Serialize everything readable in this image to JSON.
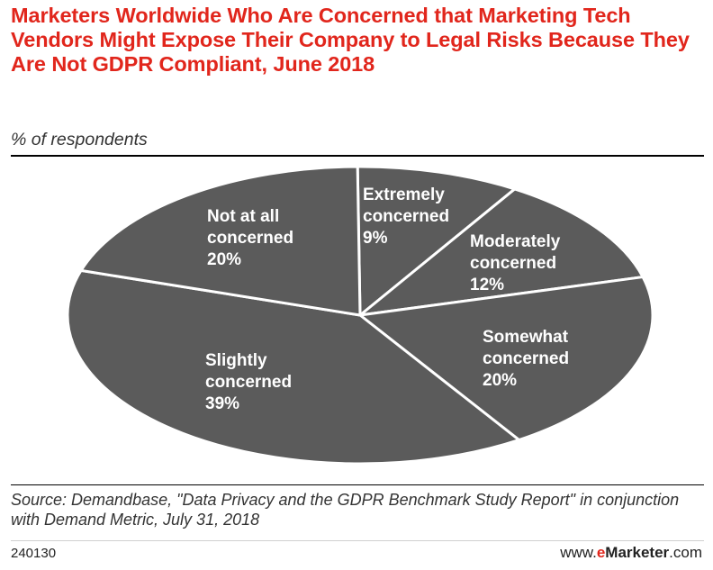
{
  "title": "Marketers Worldwide Who Are Concerned that Marketing Tech Vendors Might Expose Their Company to Legal Risks Because They Are Not GDPR Compliant, June 2018",
  "subtitle": "% of respondents",
  "source": "Source: Demandbase, \"Data Privacy and the GDPR Benchmark Study Report\" in conjunction with Demand Metric, July 31, 2018",
  "chart_id": "240130",
  "brand": {
    "prefix": "www.",
    "e": "e",
    "name": "Marketer",
    "suffix": ".com"
  },
  "colors": {
    "title": "#e1261c",
    "slice": "#5b5b5b",
    "separator": "#ffffff",
    "label": "#ffffff"
  },
  "chart_data": {
    "type": "pie",
    "title": "Marketers Worldwide Who Are Concerned that Marketing Tech Vendors Might Expose Their Company to Legal Risks Because They Are Not GDPR Compliant, June 2018",
    "subtitle": "% of respondents",
    "unit": "%",
    "slices": [
      {
        "lines": [
          "Extremely",
          "concerned"
        ],
        "value": 9,
        "display": "9%"
      },
      {
        "lines": [
          "Moderately",
          "concerned"
        ],
        "value": 12,
        "display": "12%"
      },
      {
        "lines": [
          "Somewhat",
          "concerned"
        ],
        "value": 20,
        "display": "20%"
      },
      {
        "lines": [
          "Slightly",
          "concerned"
        ],
        "value": 39,
        "display": "39%"
      },
      {
        "lines": [
          "Not at all",
          "concerned"
        ],
        "value": 20,
        "display": "20%"
      }
    ]
  }
}
